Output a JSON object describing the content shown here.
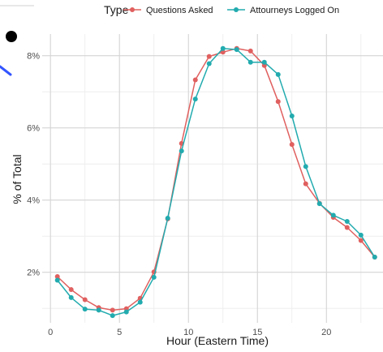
{
  "chart_data": {
    "type": "line",
    "xlabel": "Hour (Eastern Time)",
    "ylabel": "% of Total",
    "xlim": [
      -0.6,
      24.1
    ],
    "ylim": [
      0.6,
      8.6
    ],
    "x_ticks": [
      0,
      5,
      10,
      15,
      20
    ],
    "x_tick_labels": [
      "0",
      "5",
      "10",
      "15",
      "20"
    ],
    "y_ticks": [
      2,
      4,
      6,
      8
    ],
    "y_tick_labels": [
      "2%",
      "4%",
      "6%",
      "8%"
    ],
    "grid": true,
    "legend": {
      "title": "Type",
      "position": "top"
    },
    "series": [
      {
        "name": "Questions Asked",
        "color": "#E0605F",
        "x": [
          0.5,
          1.5,
          2.5,
          3.5,
          4.5,
          5.5,
          6.5,
          7.5,
          8.5,
          9.5,
          10.5,
          11.5,
          12.5,
          13.5,
          14.5,
          15.5,
          16.5,
          17.5,
          18.5,
          19.5,
          20.5,
          21.5,
          22.5,
          23.5
        ],
        "values": [
          1.88,
          1.52,
          1.24,
          1.02,
          0.95,
          0.99,
          1.28,
          2.01,
          3.48,
          5.57,
          7.33,
          7.98,
          8.1,
          8.2,
          8.13,
          7.73,
          6.73,
          5.54,
          4.45,
          3.91,
          3.52,
          3.24,
          2.88,
          2.42
        ]
      },
      {
        "name": "Attourneys Logged On",
        "color": "#22ABAF",
        "x": [
          0.5,
          1.5,
          2.5,
          3.5,
          4.5,
          5.5,
          6.5,
          7.5,
          8.5,
          9.5,
          10.5,
          11.5,
          12.5,
          13.5,
          14.5,
          15.5,
          16.5,
          17.5,
          18.5,
          19.5,
          20.5,
          21.5,
          22.5,
          23.5
        ],
        "values": [
          1.78,
          1.3,
          0.98,
          0.95,
          0.8,
          0.9,
          1.17,
          1.86,
          3.5,
          5.36,
          6.8,
          7.78,
          8.2,
          8.17,
          7.82,
          7.82,
          7.48,
          6.33,
          4.93,
          3.9,
          3.58,
          3.41,
          3.03,
          2.42
        ]
      }
    ]
  }
}
